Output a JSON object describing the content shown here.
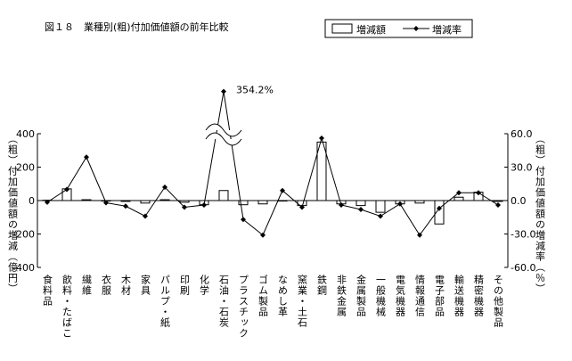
{
  "chart_data": {
    "type": "bar-line",
    "title": "図１８　業種別(粗)付加価値額の前年比較",
    "y_label": "（粗）付加価値額の増減（億円）",
    "y2_label": "（粗）付加価値額の増減率（％）",
    "categories": [
      "食料品",
      "飲料・たばこ",
      "繊維",
      "衣服",
      "木材",
      "家具",
      "パルプ・紙",
      "印刷",
      "化学",
      "石油・石炭",
      "プラスチック",
      "ゴム製品",
      "なめし革",
      "窯業・土石",
      "鉄鋼",
      "非鉄金属",
      "金属製品",
      "一般機械",
      "電気機器",
      "情報通信",
      "電子部品",
      "輸送機器",
      "精密機器",
      "その他製品"
    ],
    "series": [
      {
        "name": "増減額",
        "type": "bar",
        "color": "#ffffff",
        "values": [
          2,
          70,
          5,
          -3,
          -5,
          -15,
          5,
          -10,
          -25,
          60,
          -25,
          -20,
          -3,
          -30,
          350,
          -20,
          -30,
          -70,
          -20,
          -15,
          -140,
          20,
          50,
          -5
        ]
      },
      {
        "name": "増減率",
        "type": "line",
        "axis": "y2",
        "color": "#000000",
        "values": [
          -1.5,
          10,
          39,
          -2,
          -5,
          -14,
          12,
          -6,
          -4,
          354.2,
          -17,
          -31,
          9,
          -6,
          56,
          -4,
          -8,
          -14,
          -3,
          -31,
          -7,
          7,
          7,
          -4
        ],
        "value_labels": [
          null,
          null,
          null,
          null,
          null,
          null,
          null,
          null,
          null,
          "354.2%",
          null,
          null,
          null,
          null,
          null,
          null,
          null,
          null,
          null,
          null,
          null,
          null,
          null,
          null
        ]
      }
    ],
    "ylim": [
      -400,
      400
    ],
    "yticks": [
      -400,
      -200,
      0,
      200,
      400
    ],
    "y2lim": [
      -60,
      60
    ],
    "y2ticks": [
      {
        "value": -60,
        "label": "-60.0"
      },
      {
        "value": -30,
        "label": "-30.0"
      },
      {
        "value": 0,
        "label": "0.0"
      },
      {
        "value": 30,
        "label": "30.0"
      },
      {
        "value": 60,
        "label": "60.0"
      }
    ],
    "legend": "top-right",
    "grid": false
  }
}
